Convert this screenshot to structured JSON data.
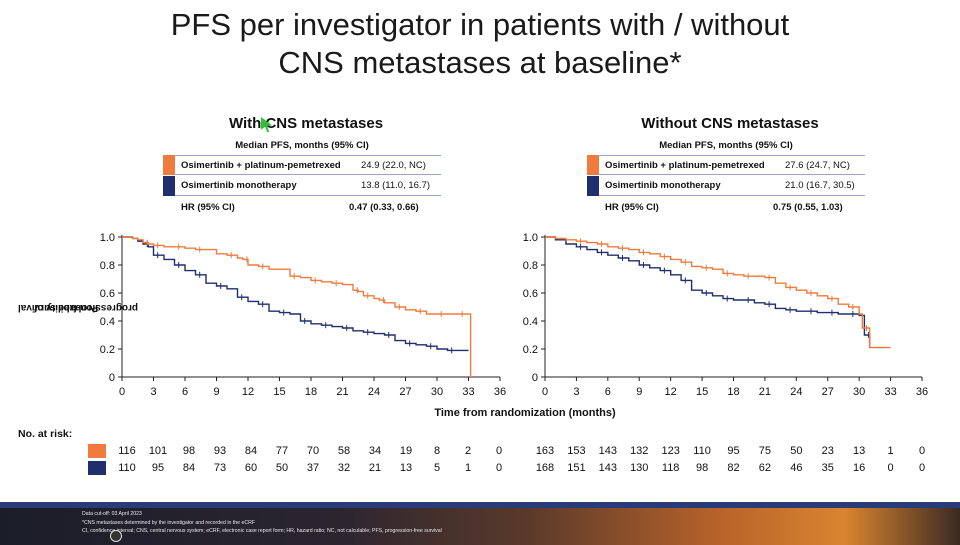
{
  "title_line1": "PFS per investigator in patients with / without",
  "title_line2": "CNS metastases at baseline*",
  "ylabel_line1": "Probability of",
  "ylabel_line2": "progression-free survival",
  "xlabel": "Time from randomization (months)",
  "risk_label": "No. at risk:",
  "colors": {
    "combo": "#f07b3c",
    "mono": "#1f2f6e",
    "axis": "#222222"
  },
  "chart_data": [
    {
      "type": "line",
      "title": "With CNS metastases",
      "table_header": "Median PFS, months (95% CI)",
      "xlim": [
        0,
        36
      ],
      "ylim": [
        0,
        1.0
      ],
      "xticks": [
        0,
        3,
        6,
        9,
        12,
        15,
        18,
        21,
        24,
        27,
        30,
        33,
        36
      ],
      "yticks": [
        "0",
        "0.2",
        "0.4",
        "0.6",
        "0.8",
        "1.0"
      ],
      "hr_label": "HR (95% CI)",
      "hr_value": "0.47 (0.33, 0.66)",
      "series": [
        {
          "name": "Osimertinib + platinum-pemetrexed",
          "median": "24.9 (22.0, NC)",
          "x": [
            0,
            1,
            1.5,
            2,
            2.5,
            3,
            4,
            5,
            6,
            7,
            9,
            10,
            11,
            11.5,
            12,
            13,
            14,
            16,
            17,
            18,
            19,
            20,
            21,
            22,
            22.5,
            23,
            24,
            24.5,
            25,
            26,
            27,
            28,
            29,
            30,
            31,
            32,
            33,
            33.2
          ],
          "y": [
            1.0,
            0.99,
            0.98,
            0.96,
            0.95,
            0.94,
            0.93,
            0.93,
            0.92,
            0.91,
            0.88,
            0.87,
            0.85,
            0.84,
            0.8,
            0.79,
            0.77,
            0.72,
            0.71,
            0.69,
            0.68,
            0.67,
            0.66,
            0.62,
            0.61,
            0.58,
            0.56,
            0.55,
            0.53,
            0.5,
            0.48,
            0.47,
            0.45,
            0.45,
            0.45,
            0.45,
            0.45,
            0.0
          ],
          "risk": [
            "116",
            "101",
            "98",
            "93",
            "84",
            "77",
            "70",
            "58",
            "34",
            "19",
            "8",
            "2",
            "0"
          ]
        },
        {
          "name": "Osimertinib monotherapy",
          "median": "13.8 (11.0, 16.7)",
          "x": [
            0,
            1,
            1.5,
            2,
            2.5,
            3,
            4,
            5,
            6,
            7,
            8,
            9,
            10,
            11,
            12,
            13,
            14,
            15,
            16,
            17,
            18,
            19,
            20,
            21,
            22,
            23,
            24,
            25,
            26,
            27,
            28,
            29,
            30,
            31,
            32,
            33
          ],
          "y": [
            1.0,
            0.99,
            0.97,
            0.95,
            0.93,
            0.87,
            0.84,
            0.8,
            0.76,
            0.73,
            0.67,
            0.65,
            0.63,
            0.57,
            0.54,
            0.52,
            0.47,
            0.46,
            0.45,
            0.4,
            0.38,
            0.37,
            0.36,
            0.35,
            0.33,
            0.32,
            0.31,
            0.3,
            0.26,
            0.24,
            0.23,
            0.22,
            0.2,
            0.19,
            0.19,
            0.19
          ],
          "risk": [
            "110",
            "95",
            "84",
            "73",
            "60",
            "50",
            "37",
            "32",
            "21",
            "13",
            "5",
            "1",
            "0"
          ]
        }
      ]
    },
    {
      "type": "line",
      "title": "Without CNS metastases",
      "table_header": "Median PFS, months (95% CI)",
      "xlim": [
        0,
        36
      ],
      "ylim": [
        0,
        1.0
      ],
      "xticks": [
        0,
        3,
        6,
        9,
        12,
        15,
        18,
        21,
        24,
        27,
        30,
        33,
        36
      ],
      "yticks": [
        "0",
        "0.2",
        "0.4",
        "0.6",
        "0.8",
        "1.0"
      ],
      "hr_label": "HR (95% CI)",
      "hr_value": "0.75 (0.55, 1.03)",
      "series": [
        {
          "name": "Osimertinib + platinum-pemetrexed",
          "median": "27.6 (24.7, NC)",
          "x": [
            0,
            1,
            2,
            3,
            4,
            5,
            6,
            7,
            8,
            9,
            10,
            11,
            12,
            13,
            14,
            15,
            16,
            17,
            18,
            19,
            20,
            21,
            22,
            23,
            24,
            25,
            26,
            27,
            28,
            29,
            30,
            30.3,
            31,
            33
          ],
          "y": [
            1.0,
            0.99,
            0.98,
            0.97,
            0.96,
            0.95,
            0.93,
            0.92,
            0.91,
            0.89,
            0.88,
            0.86,
            0.84,
            0.82,
            0.79,
            0.78,
            0.77,
            0.74,
            0.73,
            0.72,
            0.72,
            0.71,
            0.67,
            0.64,
            0.62,
            0.6,
            0.58,
            0.56,
            0.52,
            0.5,
            0.45,
            0.35,
            0.21,
            0.21
          ],
          "risk": [
            "163",
            "153",
            "143",
            "132",
            "123",
            "110",
            "95",
            "75",
            "50",
            "23",
            "13",
            "1",
            "0"
          ]
        },
        {
          "name": "Osimertinib monotherapy",
          "median": "21.0 (16.7, 30.5)",
          "x": [
            0,
            1,
            2,
            3,
            4,
            5,
            6,
            7,
            8,
            9,
            10,
            11,
            12,
            13,
            14,
            15,
            16,
            17,
            18,
            19,
            20,
            21,
            22,
            23,
            24,
            25,
            26,
            27,
            28,
            29,
            30,
            30.5,
            31
          ],
          "y": [
            1.0,
            0.98,
            0.95,
            0.93,
            0.91,
            0.89,
            0.87,
            0.85,
            0.83,
            0.8,
            0.78,
            0.76,
            0.73,
            0.69,
            0.62,
            0.6,
            0.58,
            0.56,
            0.55,
            0.55,
            0.53,
            0.52,
            0.49,
            0.48,
            0.47,
            0.47,
            0.46,
            0.46,
            0.45,
            0.45,
            0.44,
            0.3,
            0.21
          ],
          "risk": [
            "168",
            "151",
            "143",
            "130",
            "118",
            "98",
            "82",
            "62",
            "46",
            "35",
            "16",
            "0",
            "0"
          ]
        }
      ]
    }
  ],
  "footer": {
    "line1": "Data cut-off: 03 April 2023",
    "line2": "*CNS metastases determined by the investigator and recorded in the eCRF",
    "line3": "CI, confidence interval; CNS, central nervous system; eCRF, electronic case report form; HR, hazard ratio; NC, not calculable; PFS, progression-free survival"
  }
}
